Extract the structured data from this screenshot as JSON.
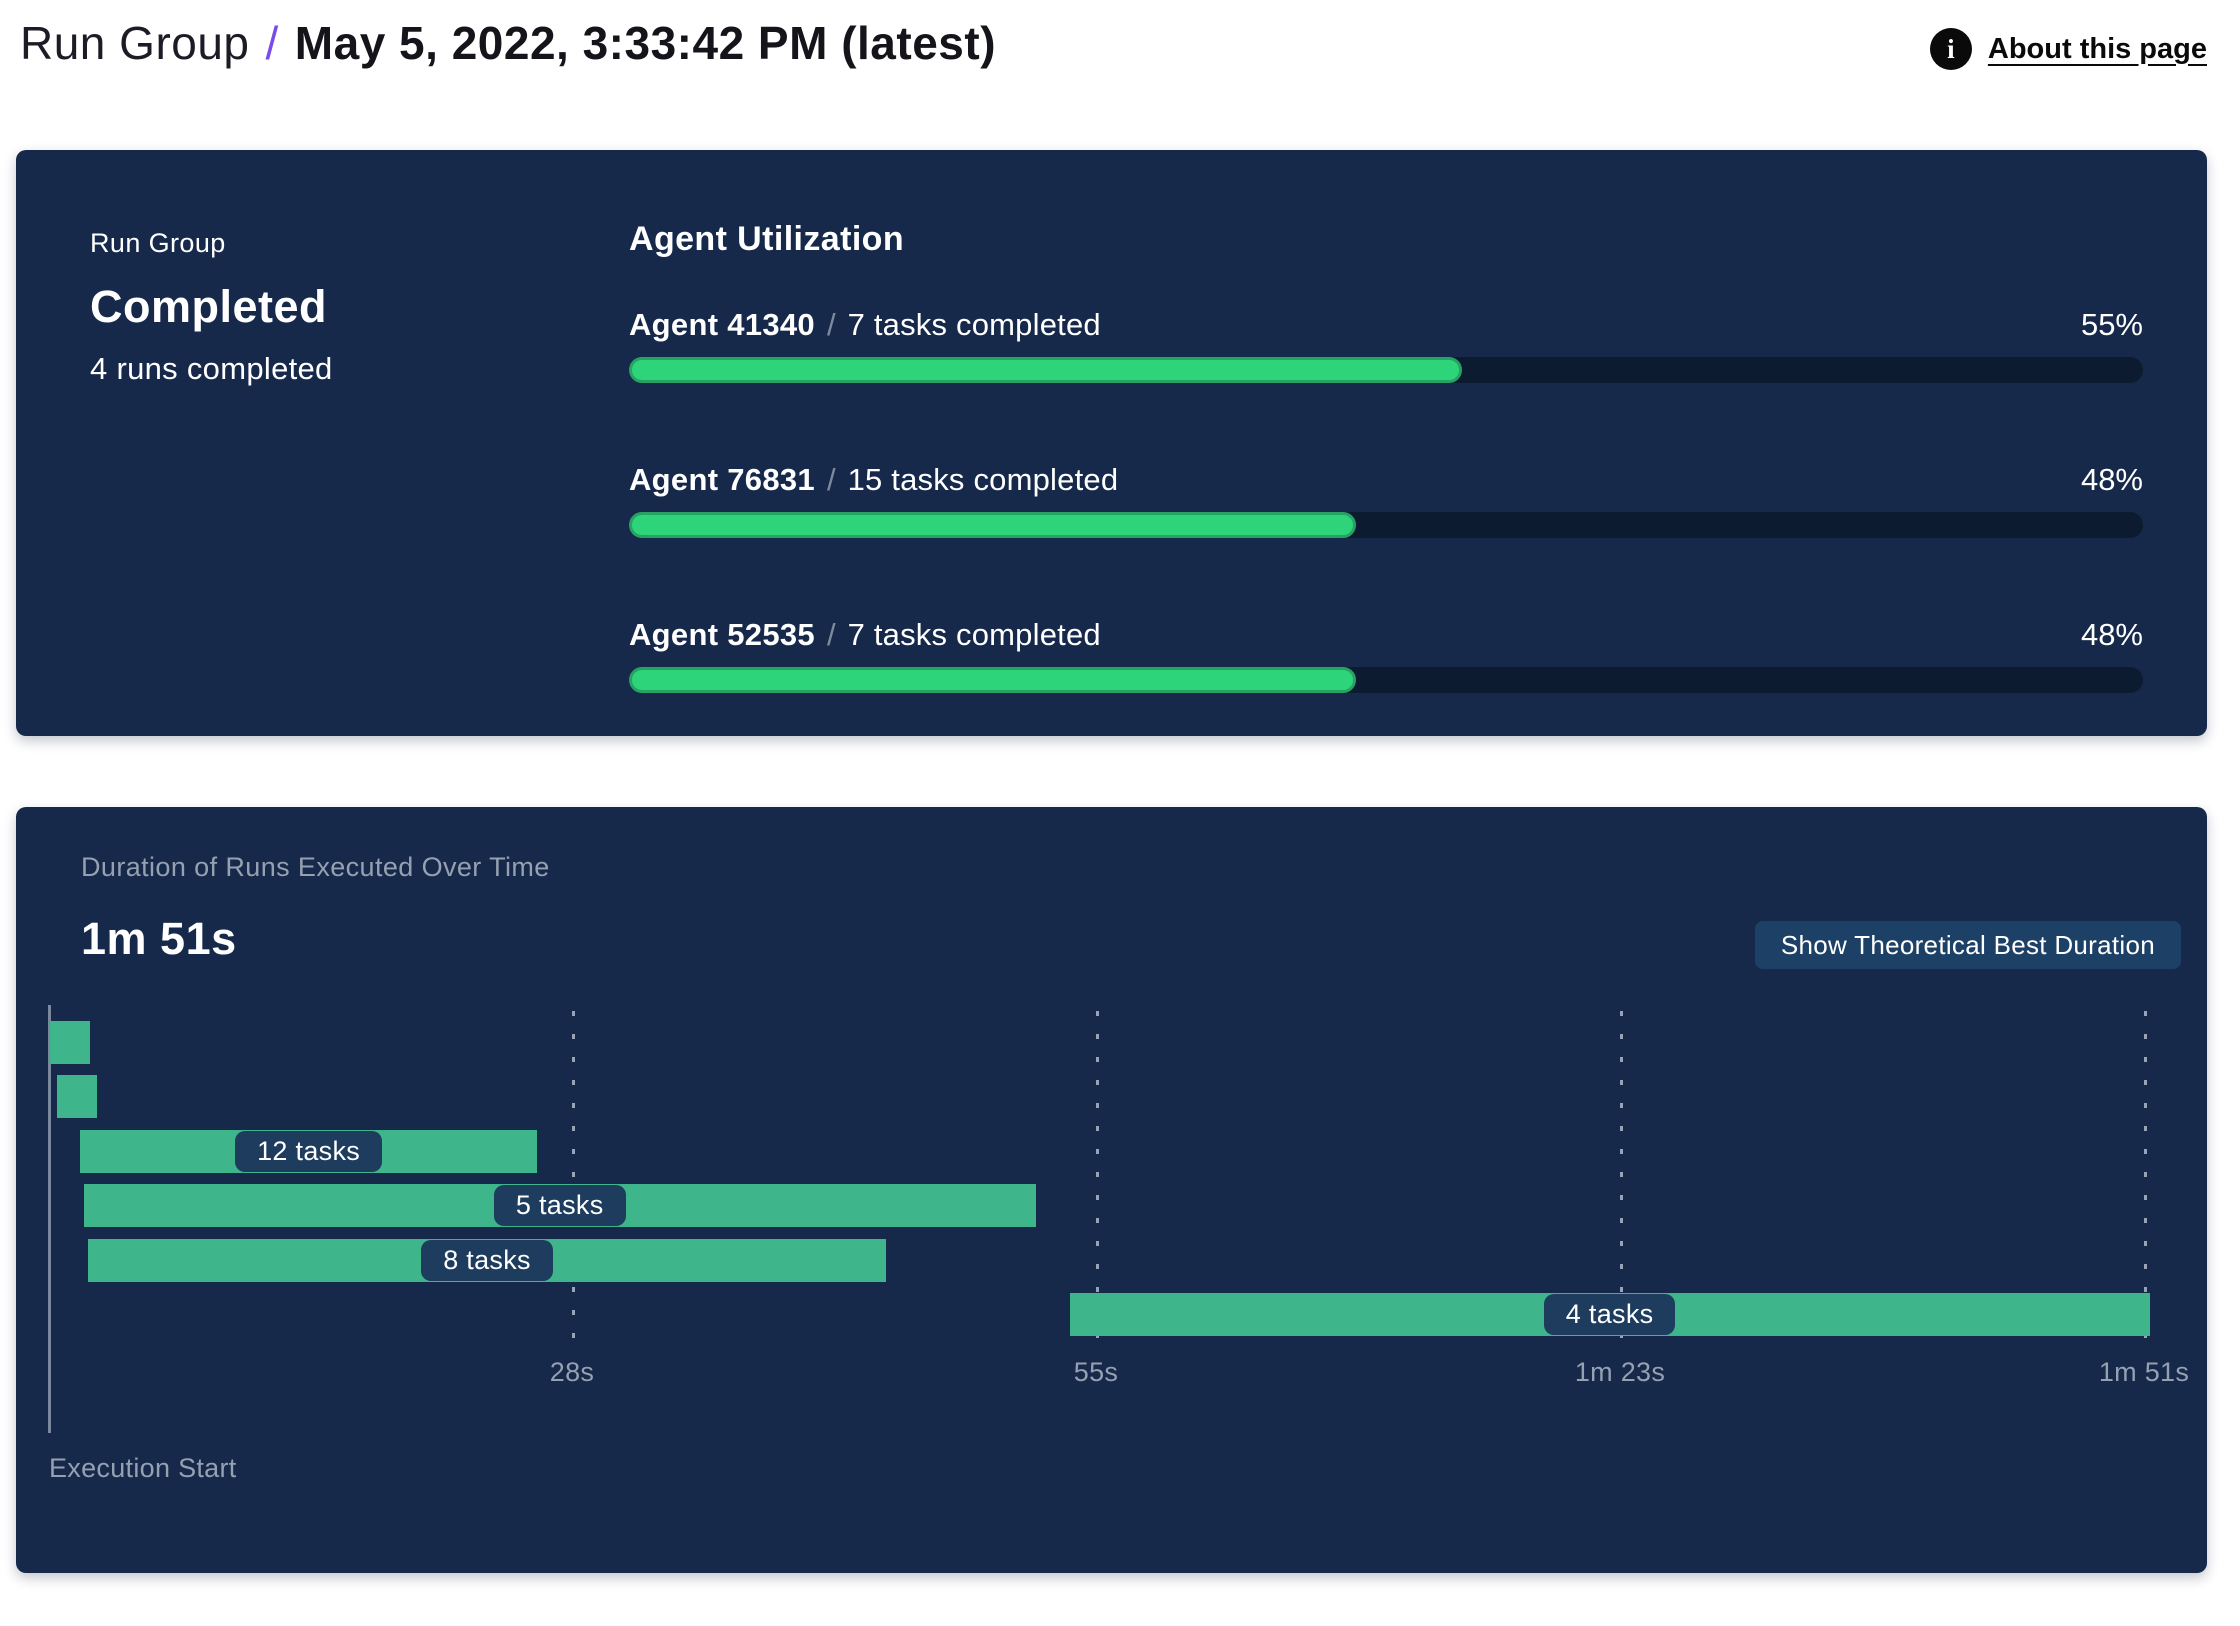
{
  "header": {
    "breadcrumb_root": "Run Group",
    "separator": "/",
    "title": "May 5, 2022, 3:33:42 PM (latest)",
    "info_icon": "info-icon",
    "about_link": "About this page"
  },
  "summary_card": {
    "kicker": "Run Group",
    "status": "Completed",
    "runs_completed": "4 runs completed",
    "section_title": "Agent Utilization",
    "agents": [
      {
        "name": "Agent 41340",
        "separator": "/",
        "tasks": "7 tasks completed",
        "percent_label": "55%",
        "percent": 55
      },
      {
        "name": "Agent 76831",
        "separator": "/",
        "tasks": "15 tasks completed",
        "percent_label": "48%",
        "percent": 48
      },
      {
        "name": "Agent 52535",
        "separator": "/",
        "tasks": "7 tasks completed",
        "percent_label": "48%",
        "percent": 48
      }
    ]
  },
  "duration_card": {
    "title": "Duration of Runs Executed Over Time",
    "total_duration": "1m 51s",
    "button_label": "Show Theoretical Best Duration",
    "execution_start_label": "Execution Start"
  },
  "chart_data": {
    "type": "gantt",
    "title": "Duration of Runs Executed Over Time",
    "xlabel": "Execution Start",
    "total_duration_seconds": 111,
    "grid": "dashed-vertical-gridlines",
    "legend_position": "none",
    "axis_ticks": [
      {
        "label": "28s",
        "seconds": 27.75
      },
      {
        "label": "55s",
        "seconds": 55.5
      },
      {
        "label": "1m 23s",
        "seconds": 83.25
      },
      {
        "label": "1m 51s",
        "seconds": 111
      }
    ],
    "runs": [
      {
        "label": "",
        "start_s": 0.1,
        "end_s": 2.2
      },
      {
        "label": "",
        "start_s": 0.5,
        "end_s": 2.6
      },
      {
        "label": "12 tasks",
        "start_s": 1.7,
        "end_s": 25.9
      },
      {
        "label": "5 tasks",
        "start_s": 1.9,
        "end_s": 52.3
      },
      {
        "label": "8 tasks",
        "start_s": 2.1,
        "end_s": 44.4
      },
      {
        "label": "4 tasks",
        "start_s": 54.1,
        "end_s": 111.3
      }
    ]
  },
  "colors": {
    "card_bg": "#16294B",
    "progress_fill": "#2DD47A",
    "progress_fill_border": "#28A263",
    "progress_track": "#0D1B31",
    "gantt_bar": "#3FB58B",
    "badge_bg": "#1D3C5E",
    "button_bg": "#1D4166",
    "accent_purple": "#7A4BE8",
    "muted_text": "#95A0B1",
    "axis_line": "#8C99AB"
  }
}
